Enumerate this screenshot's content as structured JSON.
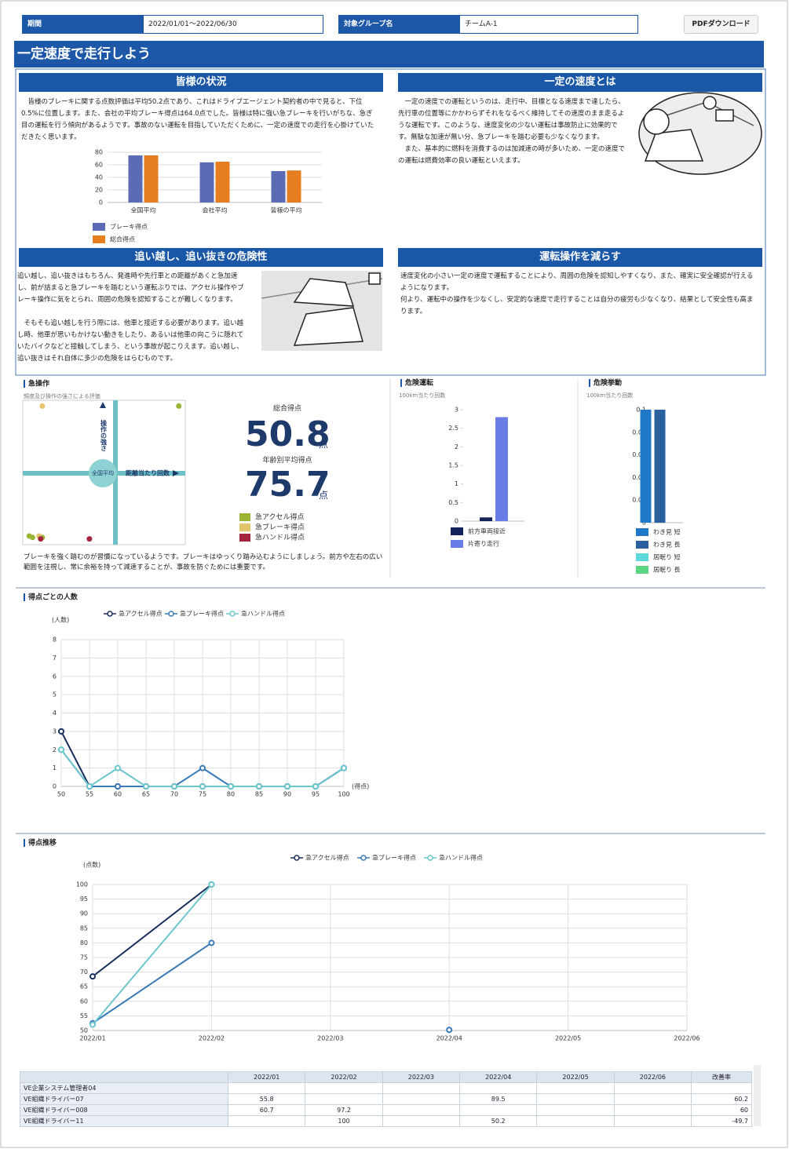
{
  "header": {
    "period_label": "期間",
    "period": "2022/01/01～2022/06/30",
    "group_label": "対象グループ名",
    "group": "チームA-1",
    "pdf_button": "PDFダウンロード"
  },
  "title": "一定速度で走行しよう",
  "sections": [
    {
      "heading": "皆様の状況",
      "paragraphs": [
        "皆様のブレーキに関する点数評価は平均50.2点であり、これはドライブエージェント契約者の中で見ると、下位0.5%に位置します。また、会社の平均ブレーキ得点は64.0点でした。皆様は特に強い急ブレーキを行いがちな、急ぎ目の運転を行う傾向があるようです。事故のない運転を目指していただくために、一定の速度での走行を心掛けていただきたく思います。"
      ]
    },
    {
      "heading": "一定の速度とは",
      "paragraphs": [
        "一定の速度での運転というのは、走行中、目標となる速度まで達したら、先行車の位置等にかかわらずそれをなるべく維持してその速度のまま走るような運転です。このような、速度変化の少ない運転は事故防止に効果的です。無駄な加速が無い分、急ブレーキを踏む必要も少なくなります。",
        "また、基本的に燃料を消費するのは加減速の時が多いため、一定の速度での運転は燃費効率の良い運転といえます。"
      ]
    },
    {
      "heading": "追い越し、追い抜きの危険性",
      "paragraphs": [
        "追い越し、追い抜きはもちろん、発進時や先行車との距離があくと急加速し、前が詰まると急ブレーキを踏むという運転ぶりでは、アクセル操作やブレーキ操作に気をとられ、周囲の危険を認知することが難しくなります。",
        "そもそも追い越しを行う際には、他車と接近する必要があります。追い越し時、他車が思いもかけない動きをしたり、あるいは他車の向こうに隠れていたバイクなどと接触してしまう、という事故が起こりえます。追い越し、追い抜きはそれ自体に多少の危険をはらむものです。"
      ]
    },
    {
      "heading": "運転操作を減らす",
      "paragraphs": [
        "速度変化の小さい一定の速度で運転することにより、周囲の危険を認知しやすくなり、また、確実に安全確認が行えるようになります。",
        "何より、運転中の操作を少なくし、安定的な速度で走行することは自分の疲労も少なくなり、結果として安全性も高まります。"
      ]
    }
  ],
  "chart_data": [
    {
      "type": "bar",
      "categories": [
        "全国平均",
        "会社平均",
        "皆様の平均"
      ],
      "series": [
        {
          "name": "ブレーキ得点",
          "color": "#5b6bb5",
          "values": [
            75,
            64,
            50
          ]
        },
        {
          "name": "総合得点",
          "color": "#e67d1e",
          "values": [
            75,
            65,
            51
          ]
        }
      ],
      "ylim": [
        0,
        80
      ],
      "yticks": [
        0,
        20,
        40,
        60,
        80
      ],
      "grid": true
    },
    {
      "type": "scatter",
      "title": "急操作",
      "subtitle": "頻度及び操作の強さによる評価",
      "y_label": "操作の強さ",
      "x_label": "距離当たり回数",
      "center_label": "全国平均",
      "xlim": [
        0,
        100
      ],
      "ylim": [
        0,
        100
      ],
      "series": [
        {
          "name": "急アクセル得点",
          "color": "#9ab534",
          "x": [
            96,
            4,
            6,
            12
          ],
          "y": [
            96,
            6,
            5,
            5
          ]
        },
        {
          "name": "急ブレーキ得点",
          "color": "#e6c46c",
          "x": [
            12,
            10
          ],
          "y": [
            96,
            6
          ]
        },
        {
          "name": "急ハンドル得点",
          "color": "#a3243c",
          "x": [
            11,
            41
          ],
          "y": [
            4,
            4
          ]
        }
      ]
    },
    {
      "type": "bar",
      "title": "危険運転",
      "subtitle": "100km当たり回数",
      "series": [
        {
          "name": "前方車両接近",
          "color": "#14235a",
          "values": [
            0.1
          ]
        },
        {
          "name": "片寄り走行",
          "color": "#6a7de6",
          "values": [
            2.8
          ]
        }
      ],
      "ylim": [
        0,
        3
      ],
      "yticks": [
        0,
        0.5,
        1,
        1.5,
        2,
        2.5,
        3
      ],
      "grid": false
    },
    {
      "type": "bar",
      "title": "危険挙動",
      "subtitle": "100km当たり回数",
      "series": [
        {
          "name": "わき見 短",
          "color": "#1f78c8",
          "values": [
            0.1
          ]
        },
        {
          "name": "わき見 長",
          "color": "#2a609e",
          "values": [
            0.1
          ]
        },
        {
          "name": "居眠り 短",
          "color": "#5cd8dc",
          "values": [
            0
          ]
        },
        {
          "name": "居眠り 長",
          "color": "#5ad682",
          "values": [
            0
          ]
        }
      ],
      "ylim": [
        0,
        0.1
      ],
      "yticks": [
        0,
        0.02,
        0.04,
        0.06,
        0.08,
        0.1
      ],
      "grid": false
    },
    {
      "type": "line",
      "title": "得点ごとの人数",
      "y_label": "(人数)",
      "x_label": "(得点)",
      "x": [
        50,
        55,
        60,
        65,
        70,
        75,
        80,
        85,
        90,
        95,
        100
      ],
      "xlim": [
        50,
        100
      ],
      "xticks": [
        50,
        55,
        60,
        65,
        70,
        75,
        80,
        85,
        90,
        95,
        100
      ],
      "ylim": [
        0,
        8
      ],
      "yticks": [
        0,
        1,
        2,
        3,
        4,
        5,
        6,
        7,
        8
      ],
      "grid": true,
      "series": [
        {
          "name": "急アクセル得点",
          "color": "#1a2e5e",
          "values": [
            3,
            0,
            0,
            0,
            0,
            0,
            0,
            0,
            0,
            0,
            1
          ]
        },
        {
          "name": "急ブレーキ得点",
          "color": "#3a7ab8",
          "values": [
            2,
            0,
            0,
            0,
            0,
            1,
            0,
            0,
            0,
            0,
            1
          ]
        },
        {
          "name": "急ハンドル得点",
          "color": "#6cc6cc",
          "values": [
            2,
            0,
            1,
            0,
            0,
            0,
            0,
            0,
            0,
            0,
            1
          ]
        }
      ]
    },
    {
      "type": "line",
      "title": "得点推移",
      "y_label": "(点数)",
      "categories": [
        "2022/01",
        "2022/02",
        "2022/03",
        "2022/04",
        "2022/05",
        "2022/06"
      ],
      "ylim": [
        50,
        100
      ],
      "yticks": [
        50,
        55,
        60,
        65,
        70,
        75,
        80,
        85,
        90,
        95,
        100
      ],
      "grid": true,
      "series": [
        {
          "name": "急アクセル得点",
          "color": "#1a2e5e",
          "values": [
            68.5,
            100,
            null,
            null,
            null,
            null
          ]
        },
        {
          "name": "急ブレーキ得点",
          "color": "#3a7ab8",
          "values": [
            52.5,
            80,
            null,
            50.2,
            null,
            null
          ]
        },
        {
          "name": "急ハンドル得点",
          "color": "#6cc6cc",
          "values": [
            52,
            100,
            null,
            null,
            null,
            null
          ]
        }
      ]
    }
  ],
  "scores": {
    "total_label": "総合得点",
    "total": 50.8,
    "total_unit": "点",
    "age_label": "年齢別平均得点",
    "age": 75.7,
    "age_unit": "点"
  },
  "sudden_note": "ブレーキを強く踏むのが習慣になっているようです。ブレーキはゆっくり踏み込むようにしましょう。前方や左右の広い範囲を注視し、常に余裕を持って減速することが、事故を防ぐためには重要です。",
  "table": {
    "header": [
      null,
      "2022/01",
      "2022/02",
      "2022/03",
      "2022/04",
      "2022/05",
      "2022/06",
      "改善率"
    ],
    "rows": [
      [
        "VE企業システム管理者04",
        null,
        null,
        null,
        null,
        null,
        null,
        null
      ],
      [
        "VE組織ドライバー07",
        55.8,
        null,
        null,
        89.5,
        null,
        null,
        60.2
      ],
      [
        "VE組織ドライバー008",
        60.7,
        97.2,
        null,
        null,
        null,
        null,
        60
      ],
      [
        "VE組織ドライバー11",
        null,
        100,
        null,
        50.2,
        null,
        null,
        -49.7
      ]
    ]
  }
}
